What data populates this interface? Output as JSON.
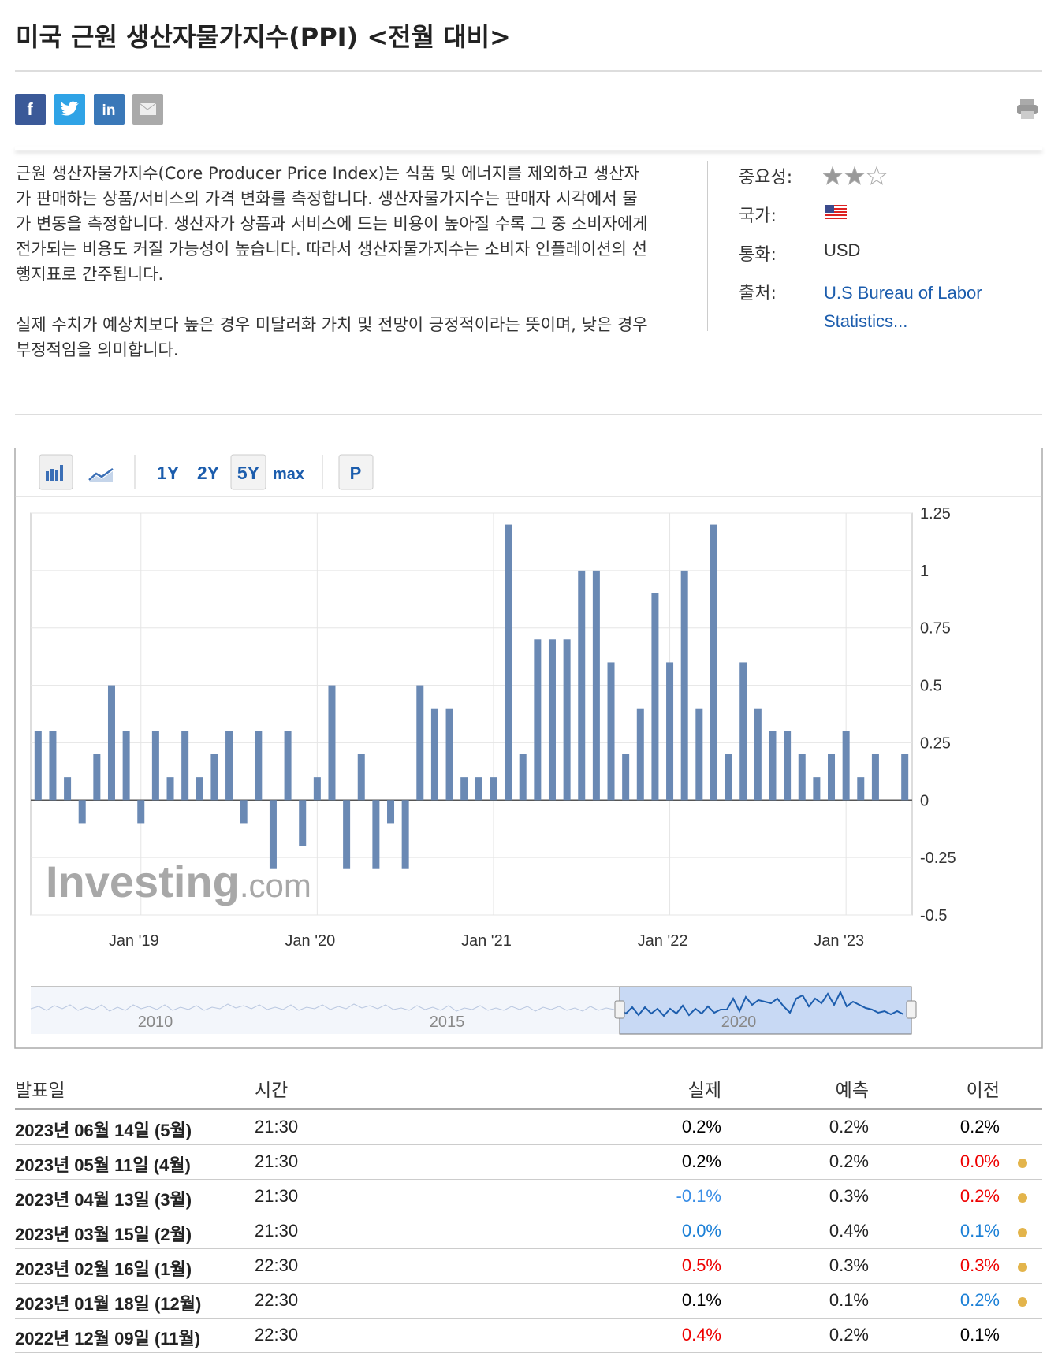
{
  "header": {
    "title": "미국 근원 생산자물가지수(PPI) <전월 대비>"
  },
  "description": {
    "paragraphs": [
      "근원 생산자물가지수(Core Producer Price Index)는 식품 및 에너지를 제외하고 생산자가 판매하는 상품/서비스의 가격 변화를 측정합니다. 생산자물가지수는 판매자 시각에서 물가 변동을 측정합니다. 생산자가 상품과 서비스에 드는 비용이 높아질 수록 그 중 소비자에게 전가되는 비용도 커질 가능성이 높습니다. 따라서 생산자물가지수는 소비자 인플레이션의 선행지표로 간주됩니다.",
      "실제 수치가 예상치보다 높은 경우 미달러화 가치 및 전망이 긍정적이라는 뜻이며, 낮은 경우 부정적임을 의미합니다."
    ]
  },
  "info": {
    "importance_label": "중요성:",
    "importance": 2,
    "country_label": "국가:",
    "currency_label": "통화:",
    "currency": "USD",
    "source_label": "출처:",
    "source": "U.S Bureau of Labor Statistics..."
  },
  "toolbar": {
    "ranges": [
      "1Y",
      "2Y",
      "5Y",
      "max"
    ],
    "active": "5Y",
    "p_button": "P"
  },
  "chart_data": {
    "type": "bar",
    "color": "#6a89b4",
    "grid": true,
    "categories": [
      null,
      null,
      null,
      null,
      null,
      null,
      null,
      "Jan '19",
      null,
      null,
      null,
      null,
      null,
      null,
      null,
      null,
      null,
      null,
      null,
      "Jan '20",
      null,
      null,
      null,
      null,
      null,
      null,
      null,
      null,
      null,
      null,
      null,
      "Jan '21",
      null,
      null,
      null,
      null,
      null,
      null,
      null,
      null,
      null,
      null,
      null,
      "Jan '22",
      null,
      null,
      null,
      null,
      null,
      null,
      null,
      null,
      null,
      null,
      null,
      "Jan '23",
      null,
      null,
      null,
      null
    ],
    "values": [
      0.3,
      0.3,
      0.1,
      -0.1,
      0.2,
      0.5,
      0.3,
      -0.1,
      0.3,
      0.1,
      0.3,
      0.1,
      0.2,
      0.3,
      -0.1,
      0.3,
      -0.3,
      0.3,
      -0.2,
      0.1,
      0.5,
      -0.3,
      0.2,
      -0.3,
      -0.1,
      -0.3,
      0.5,
      0.4,
      0.4,
      0.1,
      0.1,
      0.1,
      1.2,
      0.2,
      0.7,
      0.7,
      0.7,
      1.0,
      1.0,
      0.6,
      0.2,
      0.4,
      0.9,
      0.6,
      1.0,
      0.4,
      1.2,
      0.2,
      0.6,
      0.4,
      0.3,
      0.3,
      0.2,
      0.1,
      0.2,
      0.3,
      0.1,
      0.2,
      0,
      0.2
    ],
    "ylim": [
      -0.5,
      1.25
    ],
    "yticks": [
      1.25,
      1,
      0.75,
      0.5,
      0.25,
      0,
      -0.25,
      -0.5
    ],
    "watermark": [
      "Investing",
      ".com"
    ],
    "navigator_labels": [
      "2010",
      "2015",
      "2020"
    ]
  },
  "table": {
    "headers": [
      "발표일",
      "시간",
      "실제",
      "예측",
      "이전"
    ],
    "rows": [
      {
        "date": "2023년 06월 14일 (5월)",
        "time": "21:30",
        "actual": "0.2%",
        "forecast": "0.2%",
        "previous": "0.2%",
        "actual_color": "#000",
        "previous_color": "#000",
        "revised": false
      },
      {
        "date": "2023년 05월 11일 (4월)",
        "time": "21:30",
        "actual": "0.2%",
        "forecast": "0.2%",
        "previous": "0.0%",
        "actual_color": "#000",
        "previous_color": "#e00",
        "revised": true
      },
      {
        "date": "2023년 04월 13일 (3월)",
        "time": "21:30",
        "actual": "-0.1%",
        "forecast": "0.3%",
        "previous": "0.2%",
        "actual_color": "#3a8ee6",
        "previous_color": "#e00",
        "revised": true
      },
      {
        "date": "2023년 03월 15일 (2월)",
        "time": "21:30",
        "actual": "0.0%",
        "forecast": "0.4%",
        "previous": "0.1%",
        "actual_color": "#1a7fd6",
        "previous_color": "#1a7fd6",
        "revised": true
      },
      {
        "date": "2023년 02월 16일 (1월)",
        "time": "22:30",
        "actual": "0.5%",
        "forecast": "0.3%",
        "previous": "0.3%",
        "actual_color": "#e00",
        "previous_color": "#e00",
        "revised": true
      },
      {
        "date": "2023년 01월 18일 (12월)",
        "time": "22:30",
        "actual": "0.1%",
        "forecast": "0.1%",
        "previous": "0.2%",
        "actual_color": "#000",
        "previous_color": "#1a7fd6",
        "revised": true
      },
      {
        "date": "2022년 12월 09일 (11월)",
        "time": "22:30",
        "actual": "0.4%",
        "forecast": "0.2%",
        "previous": "0.1%",
        "actual_color": "#e00",
        "previous_color": "#000",
        "revised": false
      }
    ]
  }
}
